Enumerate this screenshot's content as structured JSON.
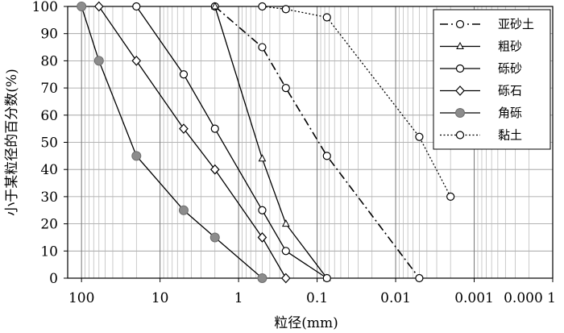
{
  "chart_data": {
    "type": "line",
    "xlabel": "粒径(mm)",
    "ylabel": "小于某粒径的百分数(%)",
    "x_scale": "log",
    "x_reversed": true,
    "xlim": [
      150,
      0.0001
    ],
    "ylim": [
      0,
      100
    ],
    "x_ticks": [
      100,
      10,
      1,
      0.1,
      0.01,
      0.001,
      0.0001
    ],
    "x_tick_labels": [
      "100",
      "10",
      "1",
      "0.1",
      "0.01",
      "0.001",
      "0.000 1"
    ],
    "y_ticks": [
      0,
      10,
      20,
      30,
      40,
      50,
      60,
      70,
      80,
      90,
      100
    ],
    "y_tick_labels": [
      "0",
      "10",
      "20",
      "30",
      "40",
      "50",
      "60",
      "70",
      "80",
      "90",
      "100"
    ],
    "grid": true,
    "legend_position": "top-right",
    "series": [
      {
        "name": "亚砂土",
        "marker": "circle",
        "line": "dashdot",
        "color": "#000000",
        "points": [
          [
            2,
            100
          ],
          [
            0.5,
            85
          ],
          [
            0.25,
            70
          ],
          [
            0.075,
            45
          ],
          [
            0.005,
            0
          ]
        ]
      },
      {
        "name": "粗砂",
        "marker": "triangle",
        "line": "solid",
        "color": "#000000",
        "points": [
          [
            2,
            100
          ],
          [
            0.5,
            44
          ],
          [
            0.25,
            20
          ],
          [
            0.075,
            0
          ]
        ]
      },
      {
        "name": "砾砂",
        "marker": "circle",
        "line": "solid",
        "color": "#000000",
        "points": [
          [
            20,
            100
          ],
          [
            5,
            75
          ],
          [
            2,
            55
          ],
          [
            0.5,
            25
          ],
          [
            0.25,
            10
          ],
          [
            0.075,
            0
          ]
        ]
      },
      {
        "name": "砾石",
        "marker": "diamond",
        "line": "solid",
        "color": "#000000",
        "points": [
          [
            60,
            100
          ],
          [
            20,
            80
          ],
          [
            5,
            55
          ],
          [
            2,
            40
          ],
          [
            0.5,
            15
          ],
          [
            0.25,
            0
          ]
        ]
      },
      {
        "name": "角砾",
        "marker": "filled-circle",
        "line": "solid",
        "color": "#808080",
        "points": [
          [
            100,
            100
          ],
          [
            60,
            80
          ],
          [
            20,
            45
          ],
          [
            5,
            25
          ],
          [
            2,
            15
          ],
          [
            0.5,
            0
          ]
        ]
      },
      {
        "name": "黏土",
        "marker": "circle",
        "line": "dotted",
        "color": "#000000",
        "points": [
          [
            0.5,
            100
          ],
          [
            0.25,
            99
          ],
          [
            0.075,
            96
          ],
          [
            0.005,
            52
          ],
          [
            0.002,
            30
          ]
        ]
      }
    ]
  }
}
